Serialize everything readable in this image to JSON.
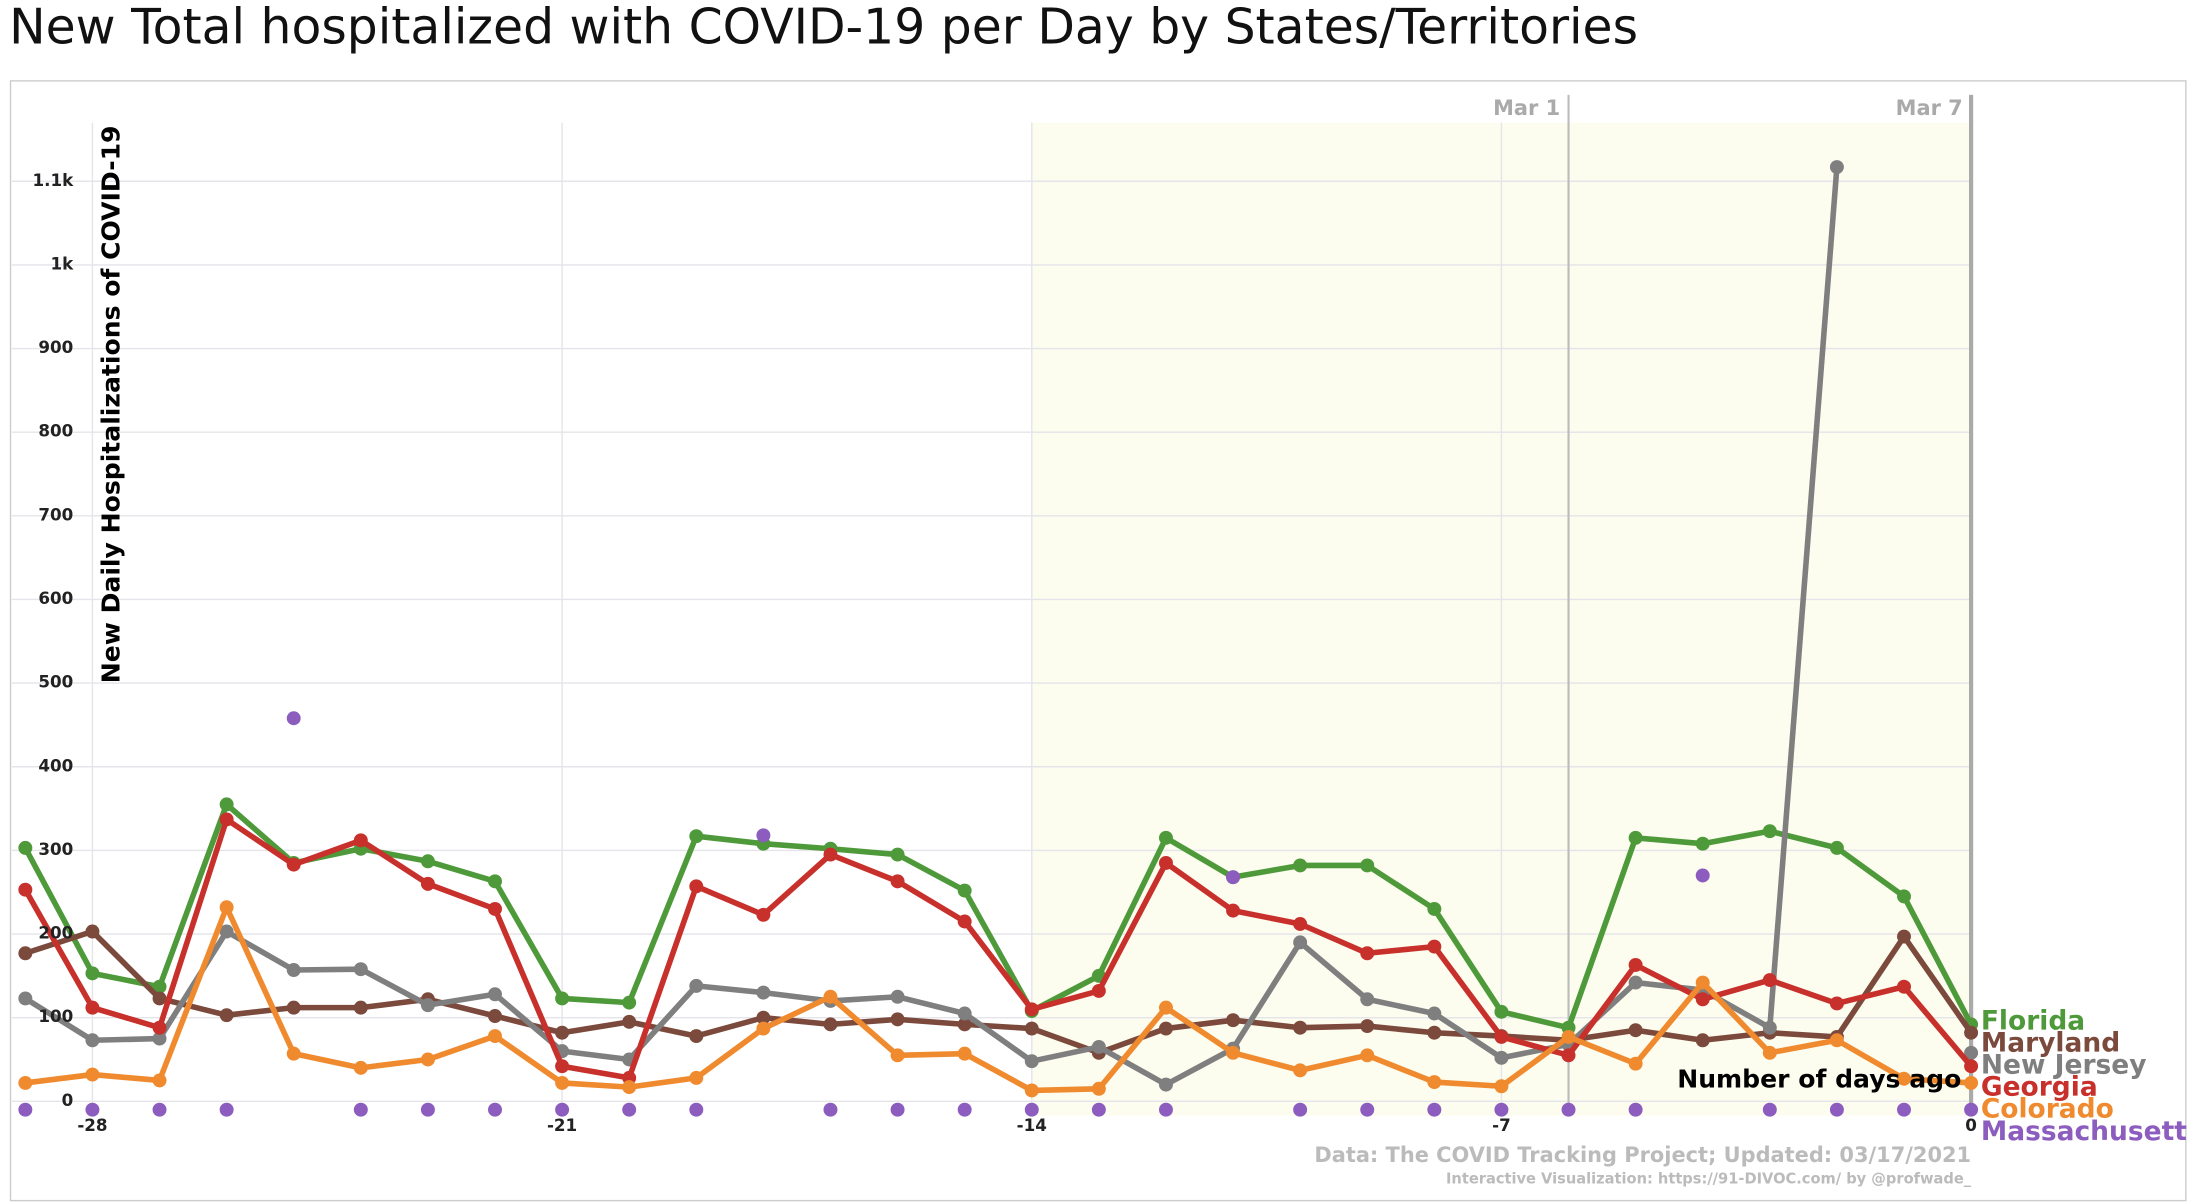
{
  "chart_data": {
    "type": "line",
    "title": "New Total hospitalized with COVID-19 per Day by States/Territories",
    "y_label": "New Daily Hospitalizations of COVID-19",
    "x_label": "Number of days ago",
    "source": "Data: The COVID Tracking Project; Updated: 03/17/2021",
    "credit": "Interactive Visualization: https://91-DIVOC.com/ by @profwade_",
    "x": [
      -29,
      -28,
      -27,
      -26,
      -25,
      -24,
      -23,
      -22,
      -21,
      -20,
      -19,
      -18,
      -17,
      -16,
      -15,
      -14,
      -13,
      -12,
      -11,
      -10,
      -9,
      -8,
      -7,
      -6,
      -5,
      -4,
      -3,
      -2,
      -1,
      0
    ],
    "xlim": [
      -29.2,
      0
    ],
    "xticks": [
      -28,
      -21,
      -14,
      -7,
      0
    ],
    "ylim": [
      -17,
      1170
    ],
    "yticks": [
      0,
      100,
      200,
      300,
      400,
      500,
      600,
      700,
      800,
      900,
      {
        "value": 1000,
        "label": "1k"
      },
      {
        "value": 1100,
        "label": "1.1k"
      }
    ],
    "grid": true,
    "highlight_range": [
      -14,
      0
    ],
    "date_markers": [
      {
        "x": -6,
        "label": "Mar 1"
      },
      {
        "x": 0,
        "label": "Mar 7"
      }
    ],
    "series": [
      {
        "name": "Florida",
        "color": "#4e9a3b",
        "values": [
          303,
          153,
          137,
          355,
          285,
          302,
          287,
          263,
          123,
          118,
          317,
          308,
          302,
          295,
          252,
          108,
          150,
          315,
          268,
          282,
          282,
          230,
          107,
          88,
          315,
          308,
          323,
          303,
          245,
          92
        ]
      },
      {
        "name": "Maryland",
        "color": "#7b4a3c",
        "values": [
          177,
          203,
          123,
          103,
          112,
          112,
          122,
          102,
          82,
          95,
          78,
          100,
          92,
          98,
          92,
          87,
          58,
          87,
          97,
          88,
          90,
          82,
          78,
          73,
          85,
          73,
          82,
          77,
          197,
          82
        ]
      },
      {
        "name": "New Jersey",
        "color": "#7f7f7f",
        "values": [
          123,
          73,
          75,
          203,
          157,
          158,
          115,
          128,
          60,
          50,
          138,
          130,
          120,
          125,
          105,
          48,
          65,
          20,
          63,
          190,
          122,
          105,
          52,
          68,
          142,
          133,
          88,
          1117,
          null,
          58
        ]
      },
      {
        "name": "Georgia",
        "color": "#c8302c",
        "values": [
          253,
          112,
          88,
          337,
          283,
          312,
          260,
          230,
          42,
          28,
          257,
          223,
          295,
          263,
          215,
          110,
          132,
          285,
          228,
          212,
          177,
          185,
          77,
          55,
          163,
          122,
          145,
          117,
          137,
          42
        ]
      },
      {
        "name": "Colorado",
        "color": "#f08a2e",
        "values": [
          22,
          32,
          25,
          232,
          57,
          40,
          50,
          78,
          22,
          17,
          28,
          87,
          125,
          55,
          57,
          13,
          15,
          112,
          58,
          37,
          55,
          23,
          18,
          77,
          45,
          142,
          58,
          73,
          27,
          22
        ]
      },
      {
        "name": "Massachusetts",
        "color": "#8c5cbf",
        "line": false,
        "values": [
          -10,
          -10,
          -10,
          -10,
          458,
          -10,
          -10,
          -10,
          -10,
          -10,
          -10,
          318,
          -10,
          -10,
          -10,
          -10,
          -10,
          -10,
          268,
          -10,
          -10,
          -10,
          -10,
          -10,
          -10,
          270,
          -10,
          -10,
          -10,
          -10
        ]
      }
    ]
  }
}
